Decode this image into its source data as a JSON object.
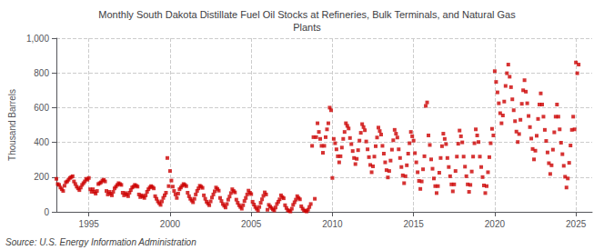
{
  "chart_data": {
    "type": "scatter",
    "title": "Monthly South Dakota Distillate Fuel Oil Stocks at Refineries, Bulk Terminals, and Natural Gas\nPlants",
    "ylabel": "Thousand Barrels",
    "annotations": [
      "Source: U.S. Energy Information Administration"
    ],
    "color": "#cc0000",
    "marker": "square",
    "grid": true,
    "xlim": [
      1993.0,
      2026.0
    ],
    "xticks": [
      1995,
      2000,
      2005,
      2010,
      2015,
      2020,
      2025
    ],
    "ylim": [
      0,
      1000
    ],
    "yticks": [
      0,
      200,
      400,
      600,
      800,
      {
        "value": 1000,
        "label": "1,000"
      }
    ],
    "x": [
      1993.0,
      1993.083,
      1993.167,
      1993.25,
      1993.333,
      1993.417,
      1993.5,
      1993.583,
      1993.667,
      1993.75,
      1993.833,
      1993.917,
      1994.0,
      1994.083,
      1994.167,
      1994.25,
      1994.333,
      1994.417,
      1994.5,
      1994.583,
      1994.667,
      1994.75,
      1994.833,
      1994.917,
      1995.0,
      1995.083,
      1995.167,
      1995.25,
      1995.333,
      1995.417,
      1995.5,
      1995.583,
      1995.667,
      1995.75,
      1995.833,
      1995.917,
      1996.0,
      1996.083,
      1996.167,
      1996.25,
      1996.333,
      1996.417,
      1996.5,
      1996.583,
      1996.667,
      1996.75,
      1996.833,
      1996.917,
      1997.0,
      1997.083,
      1997.167,
      1997.25,
      1997.333,
      1997.417,
      1997.5,
      1997.583,
      1997.667,
      1997.75,
      1997.833,
      1997.917,
      1998.0,
      1998.083,
      1998.167,
      1998.25,
      1998.333,
      1998.417,
      1998.5,
      1998.583,
      1998.667,
      1998.75,
      1998.833,
      1998.917,
      1999.0,
      1999.083,
      1999.167,
      1999.25,
      1999.333,
      1999.417,
      1999.5,
      1999.583,
      1999.667,
      1999.75,
      1999.833,
      1999.917,
      2000.0,
      2000.083,
      2000.167,
      2000.25,
      2000.333,
      2000.417,
      2000.5,
      2000.583,
      2000.667,
      2000.75,
      2000.833,
      2000.917,
      2001.0,
      2001.083,
      2001.167,
      2001.25,
      2001.333,
      2001.417,
      2001.5,
      2001.583,
      2001.667,
      2001.75,
      2001.833,
      2001.917,
      2002.0,
      2002.083,
      2002.167,
      2002.25,
      2002.333,
      2002.417,
      2002.5,
      2002.583,
      2002.667,
      2002.75,
      2002.833,
      2002.917,
      2003.0,
      2003.083,
      2003.167,
      2003.25,
      2003.333,
      2003.417,
      2003.5,
      2003.583,
      2003.667,
      2003.75,
      2003.833,
      2003.917,
      2004.0,
      2004.083,
      2004.167,
      2004.25,
      2004.333,
      2004.417,
      2004.5,
      2004.583,
      2004.667,
      2004.75,
      2004.833,
      2004.917,
      2005.0,
      2005.083,
      2005.167,
      2005.25,
      2005.333,
      2005.417,
      2005.5,
      2005.583,
      2005.667,
      2005.75,
      2005.833,
      2005.917,
      2006.0,
      2006.083,
      2006.167,
      2006.25,
      2006.333,
      2006.417,
      2006.5,
      2006.583,
      2006.667,
      2006.75,
      2006.833,
      2006.917,
      2007.0,
      2007.083,
      2007.167,
      2007.25,
      2007.333,
      2007.417,
      2007.5,
      2007.583,
      2007.667,
      2007.75,
      2007.833,
      2007.917,
      2008.0,
      2008.083,
      2008.167,
      2008.25,
      2008.333,
      2008.417,
      2008.5,
      2008.583,
      2008.667,
      2008.75,
      2008.833,
      2008.917,
      2009.0,
      2009.083,
      2009.167,
      2009.25,
      2009.333,
      2009.417,
      2009.5,
      2009.583,
      2009.667,
      2009.75,
      2009.833,
      2009.917,
      2010.0,
      2010.083,
      2010.167,
      2010.25,
      2010.333,
      2010.417,
      2010.5,
      2010.583,
      2010.667,
      2010.75,
      2010.833,
      2010.917,
      2011.0,
      2011.083,
      2011.167,
      2011.25,
      2011.333,
      2011.417,
      2011.5,
      2011.583,
      2011.667,
      2011.75,
      2011.833,
      2011.917,
      2012.0,
      2012.083,
      2012.167,
      2012.25,
      2012.333,
      2012.417,
      2012.5,
      2012.583,
      2012.667,
      2012.75,
      2012.833,
      2012.917,
      2013.0,
      2013.083,
      2013.167,
      2013.25,
      2013.333,
      2013.417,
      2013.5,
      2013.583,
      2013.667,
      2013.75,
      2013.833,
      2013.917,
      2014.0,
      2014.083,
      2014.167,
      2014.25,
      2014.333,
      2014.417,
      2014.5,
      2014.583,
      2014.667,
      2014.75,
      2014.833,
      2014.917,
      2015.0,
      2015.083,
      2015.167,
      2015.25,
      2015.333,
      2015.417,
      2015.5,
      2015.583,
      2015.667,
      2015.75,
      2015.833,
      2015.917,
      2016.0,
      2016.083,
      2016.167,
      2016.25,
      2016.333,
      2016.417,
      2016.5,
      2016.583,
      2016.667,
      2016.75,
      2016.833,
      2016.917,
      2017.0,
      2017.083,
      2017.167,
      2017.25,
      2017.333,
      2017.417,
      2017.5,
      2017.583,
      2017.667,
      2017.75,
      2017.833,
      2017.917,
      2018.0,
      2018.083,
      2018.167,
      2018.25,
      2018.333,
      2018.417,
      2018.5,
      2018.583,
      2018.667,
      2018.75,
      2018.833,
      2018.917,
      2019.0,
      2019.083,
      2019.167,
      2019.25,
      2019.333,
      2019.417,
      2019.5,
      2019.583,
      2019.667,
      2019.75,
      2019.833,
      2019.917,
      2020.0,
      2020.083,
      2020.167,
      2020.25,
      2020.333,
      2020.417,
      2020.5,
      2020.583,
      2020.667,
      2020.75,
      2020.833,
      2020.917,
      2021.0,
      2021.083,
      2021.167,
      2021.25,
      2021.333,
      2021.417,
      2021.5,
      2021.583,
      2021.667,
      2021.75,
      2021.833,
      2021.917,
      2022.0,
      2022.083,
      2022.167,
      2022.25,
      2022.333,
      2022.417,
      2022.5,
      2022.583,
      2022.667,
      2022.75,
      2022.833,
      2022.917,
      2023.0,
      2023.083,
      2023.167,
      2023.25,
      2023.333,
      2023.417,
      2023.5,
      2023.583,
      2023.667,
      2023.75,
      2023.833,
      2023.917,
      2024.0,
      2024.083,
      2024.167,
      2024.25,
      2024.333,
      2024.417,
      2024.5,
      2024.583,
      2024.667,
      2024.75,
      2024.833,
      2024.917,
      2025.0,
      2025.083,
      2025.167
    ],
    "values": [
      190,
      160,
      155,
      140,
      130,
      120,
      150,
      170,
      175,
      185,
      195,
      200,
      205,
      175,
      160,
      145,
      135,
      125,
      140,
      155,
      165,
      175,
      190,
      185,
      195,
      130,
      115,
      130,
      115,
      105,
      120,
      160,
      165,
      170,
      180,
      185,
      175,
      120,
      100,
      115,
      105,
      95,
      115,
      135,
      145,
      155,
      165,
      160,
      155,
      110,
      95,
      108,
      100,
      90,
      110,
      125,
      140,
      145,
      155,
      150,
      145,
      100,
      85,
      95,
      88,
      80,
      95,
      115,
      130,
      140,
      148,
      143,
      135,
      90,
      75,
      60,
      50,
      40,
      60,
      80,
      95,
      110,
      310,
      148,
      235,
      180,
      145,
      120,
      100,
      80,
      105,
      130,
      140,
      150,
      160,
      155,
      148,
      110,
      90,
      75,
      65,
      55,
      75,
      100,
      120,
      135,
      150,
      145,
      138,
      95,
      75,
      58,
      48,
      38,
      60,
      82,
      100,
      118,
      140,
      132,
      122,
      80,
      62,
      45,
      35,
      25,
      45,
      70,
      88,
      108,
      130,
      120,
      112,
      70,
      52,
      38,
      28,
      18,
      38,
      62,
      80,
      100,
      122,
      110,
      102,
      58,
      42,
      28,
      18,
      8,
      28,
      52,
      72,
      92,
      112,
      100,
      12,
      40,
      30,
      22,
      14,
      8,
      25,
      45,
      58,
      72,
      95,
      85,
      78,
      38,
      22,
      10,
      5,
      2,
      18,
      40,
      55,
      70,
      90,
      80,
      72,
      32,
      18,
      8,
      5,
      2,
      12,
      28,
      45,
      380,
      430,
      75,
      430,
      510,
      460,
      420,
      380,
      340,
      380,
      430,
      475,
      510,
      600,
      585,
      195,
      420,
      395,
      360,
      320,
      285,
      320,
      370,
      420,
      460,
      510,
      495,
      480,
      425,
      390,
      350,
      310,
      275,
      305,
      355,
      410,
      455,
      505,
      488,
      470,
      405,
      360,
      315,
      270,
      228,
      262,
      318,
      378,
      428,
      485,
      465,
      445,
      380,
      335,
      285,
      240,
      198,
      235,
      295,
      358,
      412,
      472,
      450,
      428,
      360,
      310,
      258,
      210,
      165,
      205,
      268,
      335,
      395,
      460,
      435,
      410,
      338,
      285,
      228,
      178,
      132,
      175,
      245,
      320,
      610,
      630,
      440,
      385,
      302,
      248,
      192,
      148,
      108,
      148,
      225,
      310,
      378,
      450,
      420,
      390,
      310,
      258,
      205,
      158,
      118,
      158,
      235,
      318,
      392,
      468,
      435,
      400,
      318,
      260,
      205,
      158,
      115,
      155,
      232,
      318,
      395,
      475,
      440,
      402,
      318,
      258,
      200,
      152,
      108,
      148,
      228,
      315,
      395,
      478,
      440,
      810,
      748,
      688,
      625,
      568,
      510,
      555,
      635,
      725,
      798,
      848,
      778,
      718,
      648,
      585,
      522,
      462,
      402,
      448,
      530,
      622,
      700,
      758,
      692,
      625,
      552,
      488,
      422,
      362,
      302,
      352,
      438,
      535,
      618,
      682,
      618,
      548,
      472,
      408,
      342,
      280,
      218,
      268,
      358,
      458,
      548,
      618,
      548,
      475,
      398,
      332,
      265,
      202,
      140,
      192,
      282,
      382,
      472,
      548,
      475,
      860,
      798,
      848
    ]
  }
}
